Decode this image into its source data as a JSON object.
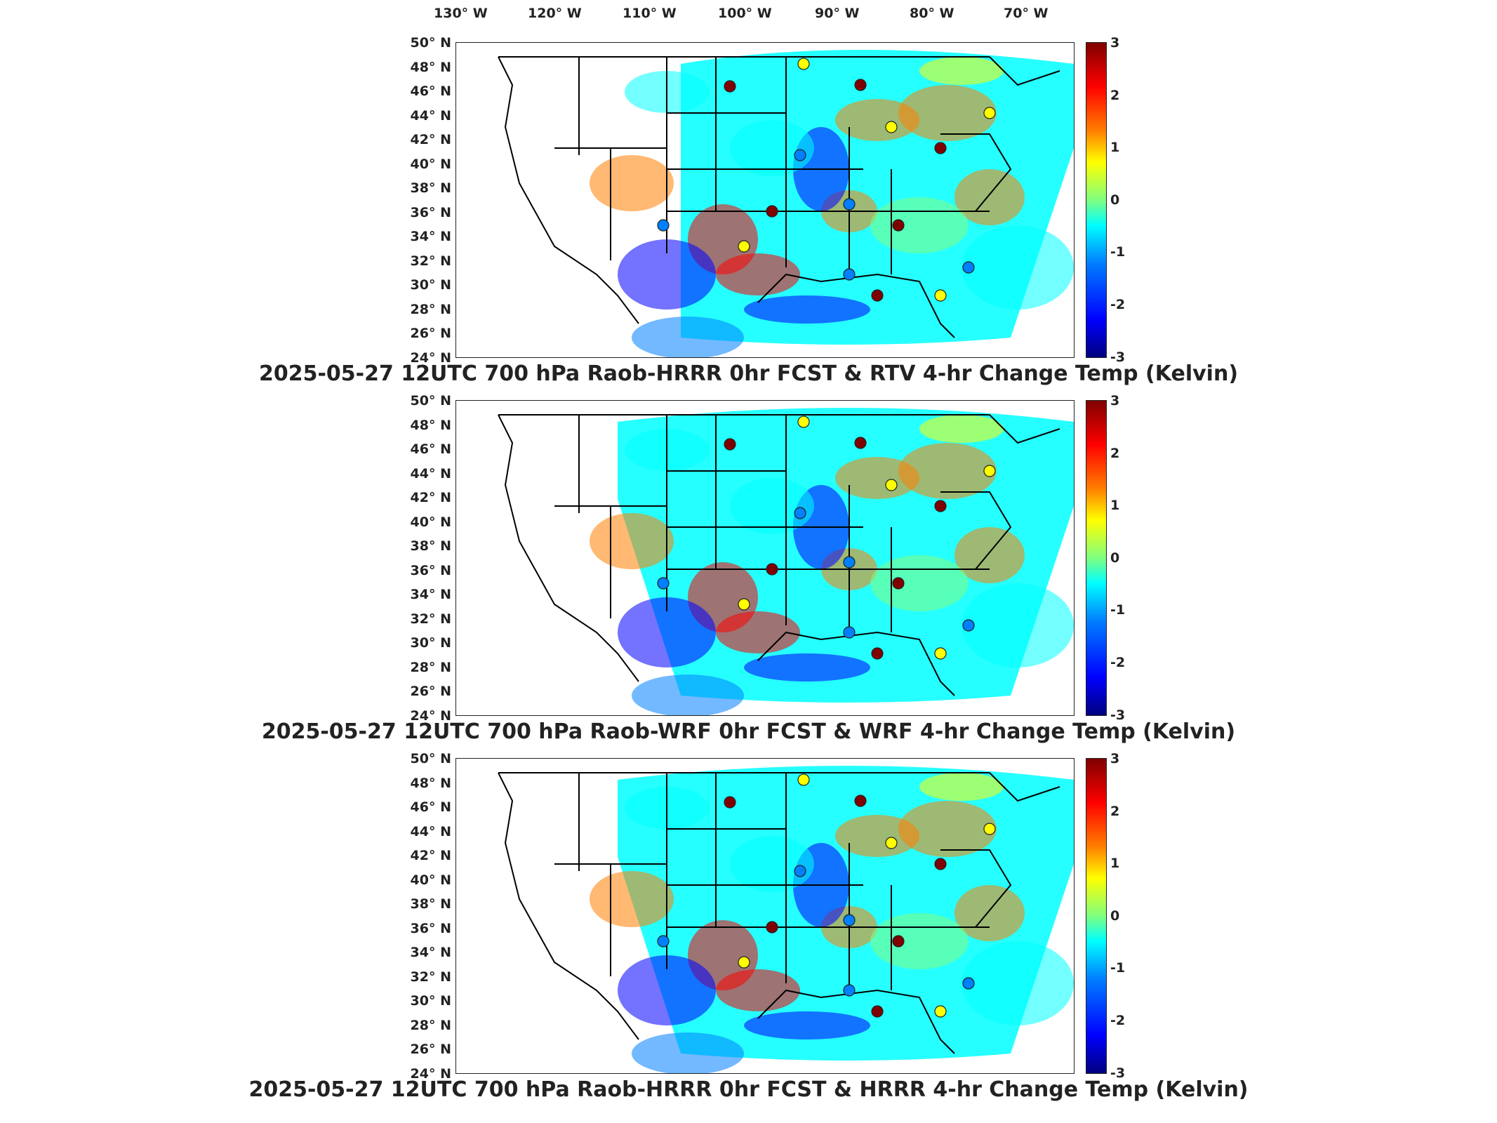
{
  "longitude_labels": [
    "130° W",
    "120° W",
    "110° W",
    "100° W",
    "90° W",
    "80° W",
    "70° W"
  ],
  "latitude_labels": [
    "50° N",
    "48° N",
    "46° N",
    "44° N",
    "42° N",
    "40° N",
    "38° N",
    "36° N",
    "34° N",
    "32° N",
    "30° N",
    "28° N",
    "26° N",
    "24° N"
  ],
  "colorbar": {
    "ticks": [
      "3",
      "2",
      "1",
      "0",
      "-1",
      "-2",
      "-3"
    ],
    "colors": [
      "#7f0000",
      "#ff0000",
      "#ff7f00",
      "#ffff00",
      "#7fff7f",
      "#00ffff",
      "#007fff",
      "#0000ff",
      "#00007f"
    ]
  },
  "panels": [
    {
      "title": "2025-05-27 12UTC 700 hPa Raob-HRRR 0hr FCST & RTV 4-hr Change Temp (Kelvin)"
    },
    {
      "title": "2025-05-27 12UTC 700 hPa Raob-WRF 0hr FCST & WRF 4-hr Change Temp (Kelvin)"
    },
    {
      "title": "2025-05-27 12UTC 700 hPa Raob-HRRR 0hr FCST & HRRR 4-hr Change Temp (Kelvin)"
    }
  ]
}
